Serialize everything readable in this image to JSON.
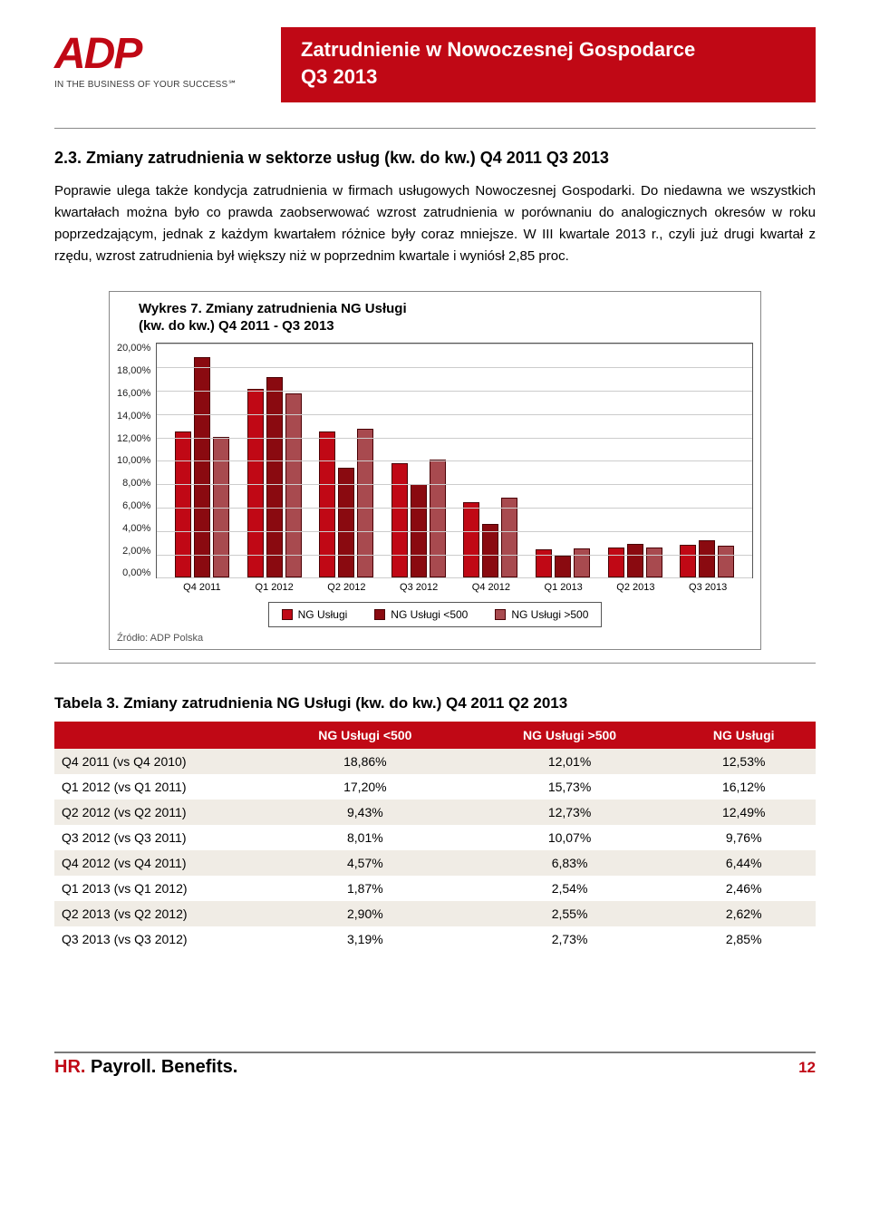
{
  "header": {
    "logo_text": "ADP",
    "tagline": "IN THE BUSINESS OF YOUR SUCCESS℠",
    "banner_line1": "Zatrudnienie w Nowoczesnej Gospodarce",
    "banner_line2": "Q3 2013"
  },
  "section": {
    "title": "2.3.  Zmiany zatrudnienia w sektorze usług (kw. do kw.) Q4 2011 Q3 2013",
    "paragraph": "Poprawie ulega także kondycja zatrudnienia w firmach usługowych Nowoczesnej Gospodarki. Do niedawna we wszystkich kwartałach można było co prawda zaobserwować wzrost zatrudnienia w porównaniu do analogicznych okresów w roku poprzedzającym, jednak z każdym kwartałem różnice były coraz mniejsze. W III kwartale 2013 r., czyli już drugi kwartał z rzędu, wzrost zatrudnienia był większy niż w poprzednim kwartale i wyniósł 2,85 proc."
  },
  "chart": {
    "type": "bar",
    "title": "Wykres 7. Zmiany zatrudnienia NG Usługi",
    "subtitle": "(kw. do kw.) Q4 2011 - Q3 2013",
    "source": "Źródło: ADP Polska",
    "ylim": [
      0,
      20
    ],
    "ytick_step": 2,
    "ytick_format_suffix": ",00%",
    "background_color": "#ffffff",
    "grid_color": "#cccccc",
    "border_color": "#555555",
    "categories": [
      "Q4 2011",
      "Q1 2012",
      "Q2 2012",
      "Q3 2012",
      "Q4 2012",
      "Q1 2013",
      "Q2 2013",
      "Q3 2013"
    ],
    "series": [
      {
        "name": "NG Usługi",
        "color": "#c00815",
        "values": [
          12.53,
          16.12,
          12.49,
          9.76,
          6.44,
          2.46,
          2.62,
          2.85
        ]
      },
      {
        "name": "NG Usługi <500",
        "color": "#8a0a10",
        "values": [
          18.86,
          17.2,
          9.43,
          8.01,
          4.57,
          1.87,
          2.9,
          3.19
        ]
      },
      {
        "name": "NG Usługi >500",
        "color": "#a84a4f",
        "values": [
          12.01,
          15.73,
          12.73,
          10.07,
          6.83,
          2.54,
          2.55,
          2.73
        ]
      }
    ],
    "bar_border_color": "#4a0004",
    "title_fontsize": 15,
    "label_fontsize": 11
  },
  "table": {
    "title": "Tabela 3. Zmiany zatrudnienia NG Usługi (kw. do kw.) Q4 2011 Q2 2013",
    "header_bg": "#c00815",
    "header_fg": "#ffffff",
    "row_odd_bg": "#f0ece5",
    "row_even_bg": "#ffffff",
    "columns": [
      "",
      "NG Usługi <500",
      "NG Usługi >500",
      "NG Usługi"
    ],
    "rows": [
      [
        "Q4 2011 (vs Q4 2010)",
        "18,86%",
        "12,01%",
        "12,53%"
      ],
      [
        "Q1 2012 (vs Q1 2011)",
        "17,20%",
        "15,73%",
        "16,12%"
      ],
      [
        "Q2 2012 (vs Q2 2011)",
        "9,43%",
        "12,73%",
        "12,49%"
      ],
      [
        "Q3 2012 (vs Q3 2011)",
        "8,01%",
        "10,07%",
        "9,76%"
      ],
      [
        "Q4 2012 (vs Q4 2011)",
        "4,57%",
        "6,83%",
        "6,44%"
      ],
      [
        "Q1 2013 (vs Q1 2012)",
        "1,87%",
        "2,54%",
        "2,46%"
      ],
      [
        "Q2 2013 (vs Q2 2012)",
        "2,90%",
        "2,55%",
        "2,62%"
      ],
      [
        "Q3 2013 (vs Q3 2012)",
        "3,19%",
        "2,73%",
        "2,85%"
      ]
    ]
  },
  "footer": {
    "text_parts": [
      "HR.",
      " Payroll.",
      " Benefits."
    ],
    "page": "12"
  }
}
